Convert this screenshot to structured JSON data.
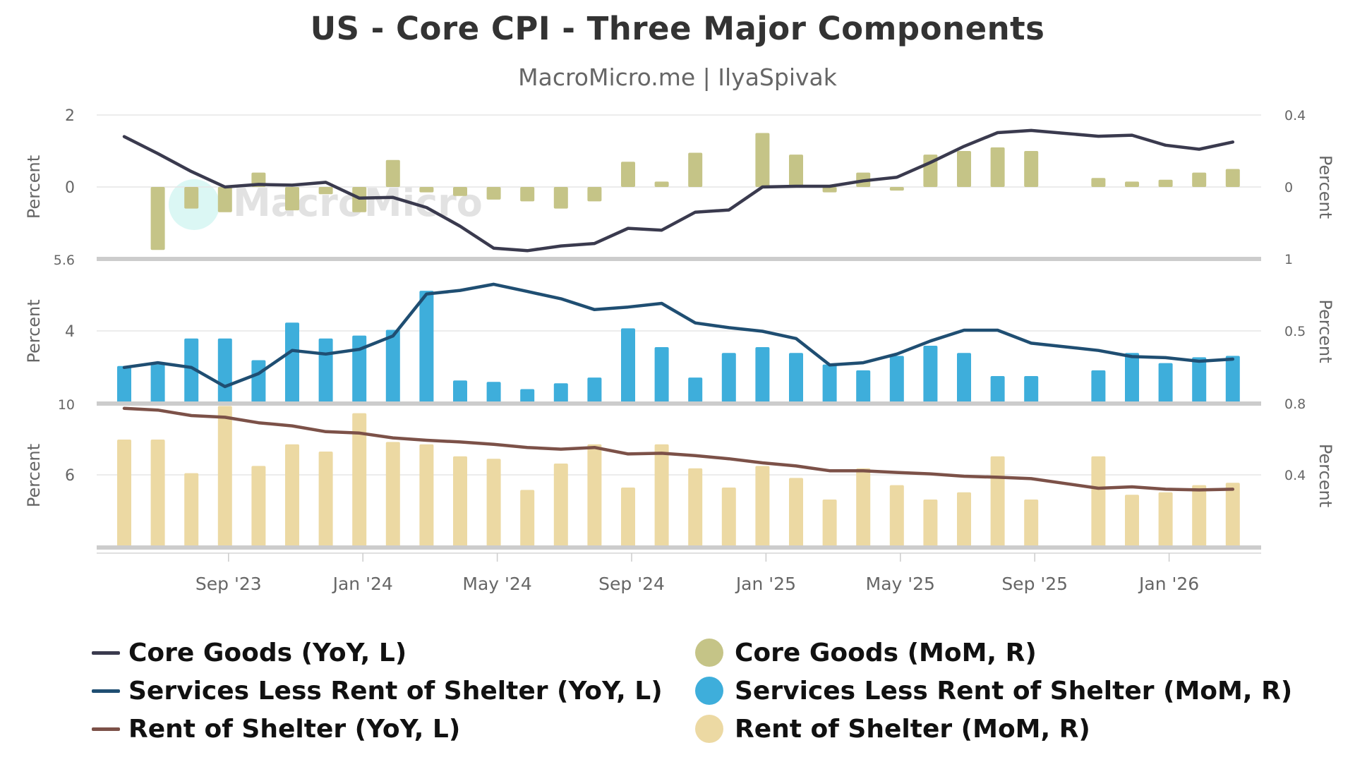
{
  "title": "US - Core CPI - Three Major Components",
  "subtitle": "MacroMicro.me | IlyaSpivak",
  "watermark": "MacroMicro",
  "colors": {
    "core_goods_line": "#3a3a4e",
    "core_goods_bar": "#c5c487",
    "services_line": "#1f4e72",
    "services_bar": "#3eaedb",
    "shelter_line": "#7c5148",
    "shelter_bar": "#ecd9a3",
    "grid": "#e6e6e6",
    "separator": "#cccccc"
  },
  "chart_data": {
    "type": "line+bar",
    "title": "US - Core CPI - Three Major Components",
    "subtitle": "MacroMicro.me | IlyaSpivak",
    "x_labels": [
      "Sep '23",
      "Jan '24",
      "May '24",
      "Sep '24",
      "Jan '25",
      "May '25",
      "Sep '25",
      "Jan '26"
    ],
    "x_months": [
      "Jun '23",
      "Jul '23",
      "Aug '23",
      "Sep '23",
      "Oct '23",
      "Nov '23",
      "Dec '23",
      "Jan '24",
      "Feb '24",
      "Mar '24",
      "Apr '24",
      "May '24",
      "Jun '24",
      "Jul '24",
      "Aug '24",
      "Sep '24",
      "Oct '24",
      "Nov '24",
      "Dec '24",
      "Jan '25",
      "Feb '25",
      "Mar '25",
      "Apr '25",
      "May '25",
      "Jun '25",
      "Jul '25",
      "Aug '25",
      "Sep '25",
      "Oct '25",
      "Nov '25",
      "Dec '25",
      "Jan '26",
      "Feb '26",
      "Mar '26"
    ],
    "legend": [
      {
        "label": "Core Goods (YoY, L)",
        "kind": "line",
        "color": "#3a3a4e"
      },
      {
        "label": "Core Goods (MoM, R)",
        "kind": "bar",
        "color": "#c5c487"
      },
      {
        "label": "Services Less Rent of Shelter (YoY, L)",
        "kind": "line",
        "color": "#1f4e72"
      },
      {
        "label": "Services Less Rent of Shelter (MoM, R)",
        "kind": "bar",
        "color": "#3eaedb"
      },
      {
        "label": "Rent of Shelter (YoY, L)",
        "kind": "line",
        "color": "#7c5148"
      },
      {
        "label": "Rent of Shelter (MoM, R)",
        "kind": "bar",
        "color": "#ecd9a3"
      }
    ],
    "panels": [
      {
        "name": "Core Goods",
        "left_axis": {
          "label": "Percent",
          "ticks": [
            "2",
            "0"
          ],
          "range": [
            -2,
            2
          ]
        },
        "right_axis": {
          "label": "Percent",
          "ticks": [
            "0.4",
            "0"
          ],
          "range": [
            -0.4,
            0.4
          ]
        },
        "bottom_tick_left": "5.6",
        "bottom_tick_right": "1",
        "series": [
          {
            "name": "Core Goods (YoY, L)",
            "type": "line",
            "color": "#3a3a4e",
            "values": [
              1.4,
              0.93,
              0.43,
              0.0,
              0.07,
              0.05,
              0.13,
              -0.31,
              -0.29,
              -0.57,
              -1.09,
              -1.7,
              -1.77,
              -1.64,
              -1.57,
              -1.15,
              -1.2,
              -0.7,
              -0.64,
              0.0,
              0.02,
              0.02,
              0.17,
              0.27,
              0.68,
              1.13,
              1.51,
              1.57,
              1.49,
              1.41,
              1.44,
              1.16,
              1.05,
              1.25
            ]
          },
          {
            "name": "Core Goods (MoM, R)",
            "type": "bar",
            "color": "#c5c487",
            "values": [
              null,
              -0.35,
              -0.12,
              -0.14,
              0.08,
              -0.13,
              -0.04,
              -0.14,
              0.15,
              -0.03,
              -0.05,
              -0.07,
              -0.08,
              -0.12,
              -0.08,
              0.14,
              0.03,
              0.19,
              null,
              0.3,
              0.18,
              -0.03,
              0.08,
              -0.02,
              0.18,
              0.2,
              0.22,
              0.2,
              null,
              0.05,
              0.03,
              0.04,
              0.08,
              0.1
            ]
          }
        ]
      },
      {
        "name": "Services Less Rent of Shelter",
        "left_axis": {
          "label": "Percent",
          "ticks": [
            "4"
          ],
          "range": [
            2,
            6
          ]
        },
        "right_axis": {
          "label": "Percent",
          "ticks": [
            "0.5"
          ],
          "range": [
            0,
            1
          ]
        },
        "bottom_tick_left": "10",
        "bottom_tick_right": "0.8",
        "series": [
          {
            "name": "Services Less Rent of Shelter (YoY, L)",
            "type": "line",
            "color": "#1f4e72",
            "values": [
              3.0,
              3.13,
              3.0,
              2.47,
              2.83,
              3.47,
              3.37,
              3.5,
              3.87,
              5.03,
              5.13,
              5.3,
              5.1,
              4.9,
              4.6,
              4.67,
              4.77,
              4.23,
              4.1,
              4.0,
              3.8,
              3.07,
              3.13,
              3.37,
              3.73,
              4.03,
              4.03,
              3.67,
              3.57,
              3.47,
              3.3,
              3.27,
              3.17,
              3.23
            ]
          },
          {
            "name": "Services Less Rent of Shelter (MoM, R)",
            "type": "bar",
            "color": "#3eaedb",
            "values": [
              0.26,
              0.27,
              0.45,
              0.45,
              0.3,
              0.56,
              0.45,
              0.47,
              0.51,
              0.78,
              0.16,
              0.15,
              0.1,
              0.14,
              0.18,
              0.52,
              0.39,
              0.18,
              0.35,
              0.39,
              0.35,
              0.27,
              0.23,
              0.33,
              0.4,
              0.35,
              0.19,
              0.19,
              null,
              0.23,
              0.35,
              0.28,
              0.32,
              0.33
            ]
          }
        ]
      },
      {
        "name": "Rent of Shelter",
        "left_axis": {
          "label": "Percent",
          "ticks": [
            "6"
          ],
          "range": [
            2,
            8
          ]
        },
        "right_axis": {
          "label": "Percent",
          "ticks": [
            "0.4"
          ],
          "range": [
            0,
            0.6
          ]
        },
        "bottom_tick_left": "",
        "bottom_tick_right": "",
        "series": [
          {
            "name": "Rent of Shelter (YoY, L)",
            "type": "line",
            "color": "#7c5148",
            "values": [
              7.8,
              7.73,
              7.5,
              7.43,
              7.2,
              7.07,
              6.83,
              6.77,
              6.57,
              6.47,
              6.4,
              6.3,
              6.17,
              6.1,
              6.17,
              5.9,
              5.93,
              5.83,
              5.7,
              5.53,
              5.4,
              5.2,
              5.2,
              5.13,
              5.07,
              4.97,
              4.93,
              4.87,
              4.67,
              4.47,
              4.53,
              4.43,
              4.4,
              4.43
            ]
          },
          {
            "name": "Rent of Shelter (MoM, R)",
            "type": "bar",
            "color": "#ecd9a3",
            "values": [
              0.45,
              0.45,
              0.31,
              0.59,
              0.34,
              0.43,
              0.4,
              0.56,
              0.44,
              0.43,
              0.38,
              0.37,
              0.24,
              0.35,
              0.43,
              0.25,
              0.43,
              0.33,
              0.25,
              0.34,
              0.29,
              0.2,
              0.33,
              0.26,
              0.2,
              0.23,
              0.38,
              0.2,
              null,
              0.38,
              0.22,
              0.23,
              0.26,
              0.27
            ]
          }
        ]
      }
    ]
  }
}
